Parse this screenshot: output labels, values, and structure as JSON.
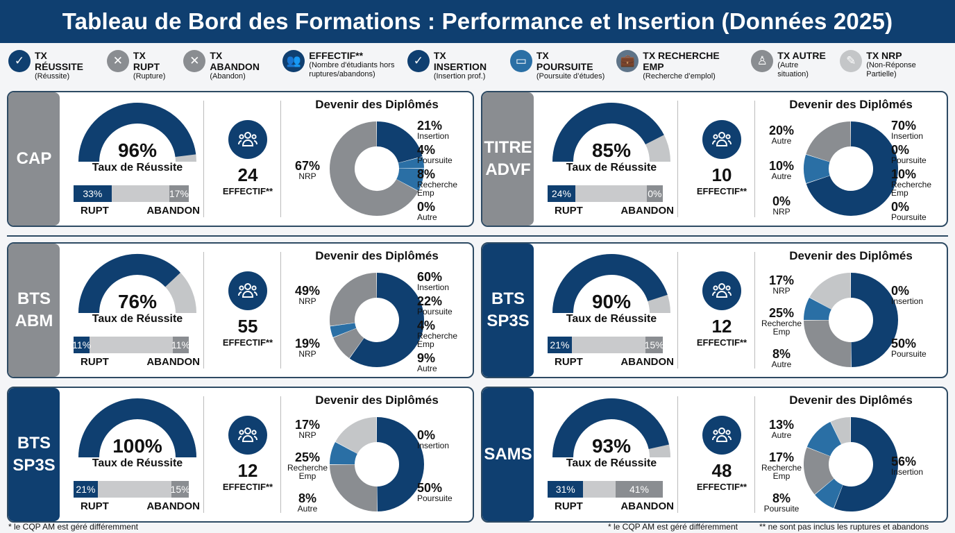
{
  "title": "Tableau de Bord des Formations : Performance et Insertion (Données 2025)",
  "colors": {
    "navy": "#0f3f70",
    "blue": "#2a6fa5",
    "gray": "#8a8d91",
    "light": "#c4c6c8",
    "label_gray": "#8a8d91",
    "label_blue": "#0f3f70"
  },
  "legend": [
    {
      "icon": "check-icon",
      "glyph": "✓",
      "color": "#0f3f70",
      "title": "TX RÉUSSITE",
      "sub": "(Réussite)"
    },
    {
      "icon": "x-icon",
      "glyph": "✕",
      "color": "#8a8d91",
      "title": "TX RUPT",
      "sub": "(Rupture)"
    },
    {
      "icon": "x-icon",
      "glyph": "✕",
      "color": "#8a8d91",
      "title": "TX ABANDON",
      "sub": "(Abandon)"
    },
    {
      "icon": "users-icon",
      "glyph": "👥",
      "color": "#0f3f70",
      "title": "EFFECTIF**",
      "sub": "(Nombre d'étudiants hors ruptures/abandons)"
    },
    {
      "icon": "check-icon",
      "glyph": "✓",
      "color": "#0f3f70",
      "title": "TX INSERTION",
      "sub": "(Insertion prof.)"
    },
    {
      "icon": "tablet-icon",
      "glyph": "▭",
      "color": "#2a6fa5",
      "title": "TX POURSUITE",
      "sub": "(Poursuite d’études)"
    },
    {
      "icon": "briefcase-icon",
      "glyph": "💼",
      "color": "#5f7488",
      "title": "TX RECHERCHE EMP",
      "sub": "(Recherche d’emplol)"
    },
    {
      "icon": "person-icon",
      "glyph": "♙",
      "color": "#8a8d91",
      "title": "TX AUTRE",
      "sub": "(Autre situation)"
    },
    {
      "icon": "pen-icon",
      "glyph": "✎",
      "color": "#c4c6c8",
      "title": "TX NRP",
      "sub": "(Non-Réponse Partielle)"
    }
  ],
  "labels": {
    "gauge": "Taux de Réussite",
    "rupt": "RUPT",
    "abandon": "ABANDON",
    "effectif": "EFFECTIF**",
    "donut": "Devenir des Diplômés"
  },
  "chart_data": [
    {
      "type": "pie",
      "name": "CAP",
      "label_color": "gray",
      "reussite": "96%",
      "reussite_value": 96,
      "rupt": "33%",
      "rupt_value": 33,
      "abandon": "17%",
      "abandon_value": 17,
      "effectif": "24",
      "segments": [
        {
          "value": 21,
          "color": "navy"
        },
        {
          "value": 4,
          "color": "blue"
        },
        {
          "value": 8,
          "color": "blue"
        },
        {
          "value": 67,
          "color": "gray"
        }
      ],
      "left": [
        {
          "pct": "67%",
          "cat": "NRP"
        }
      ],
      "right": [
        {
          "pct": "21%",
          "cat": "Insertion"
        },
        {
          "pct": "4%",
          "cat": "Poursuite"
        },
        {
          "pct": "8%",
          "cat": "Recherche Emp"
        },
        {
          "pct": "0%",
          "cat": "Autre"
        }
      ]
    },
    {
      "type": "pie",
      "name": "TITRE ADVF",
      "label_color": "gray",
      "reussite": "85%",
      "reussite_value": 85,
      "rupt": "24%",
      "rupt_value": 24,
      "abandon": "0%",
      "abandon_value": 0,
      "effectif": "10",
      "segments": [
        {
          "value": 70,
          "color": "navy"
        },
        {
          "value": 10,
          "color": "blue"
        },
        {
          "value": 20,
          "color": "gray"
        }
      ],
      "left": [
        {
          "pct": "20%",
          "cat": "Autre"
        },
        {
          "pct": "10%",
          "cat": "Autre"
        },
        {
          "pct": "0%",
          "cat": "NRP"
        }
      ],
      "right": [
        {
          "pct": "70%",
          "cat": "Insertion"
        },
        {
          "pct": "0%",
          "cat": "Poursuite"
        },
        {
          "pct": "10%",
          "cat": "Recherche Emp"
        },
        {
          "pct": "0%",
          "cat": "Poursuite"
        }
      ]
    },
    {
      "type": "pie",
      "name": "BTS ABM",
      "label_color": "gray",
      "reussite": "76%",
      "reussite_value": 76,
      "rupt": "11%",
      "rupt_value": 11,
      "abandon": "11%",
      "abandon_value": 11,
      "effectif": "55",
      "segments": [
        {
          "value": 60,
          "color": "navy"
        },
        {
          "value": 9,
          "color": "gray"
        },
        {
          "value": 4,
          "color": "blue"
        },
        {
          "value": 27,
          "color": "gray"
        }
      ],
      "left": [
        {
          "pct": "49%",
          "cat": "NRP"
        },
        {
          "pct": "19%",
          "cat": "NRP"
        }
      ],
      "right": [
        {
          "pct": "60%",
          "cat": "Insertion"
        },
        {
          "pct": "22%",
          "cat": "Poursuite"
        },
        {
          "pct": "4%",
          "cat": "Recherche Emp"
        },
        {
          "pct": "9%",
          "cat": "Autre"
        }
      ]
    },
    {
      "type": "pie",
      "name": "BTS SP3S",
      "label_color": "blue",
      "reussite": "90%",
      "reussite_value": 90,
      "rupt": "21%",
      "rupt_value": 21,
      "abandon": "15%",
      "abandon_value": 15,
      "effectif": "12",
      "segments": [
        {
          "value": 50,
          "color": "navy"
        },
        {
          "value": 25,
          "color": "gray"
        },
        {
          "value": 8,
          "color": "blue"
        },
        {
          "value": 17,
          "color": "light"
        }
      ],
      "left": [
        {
          "pct": "17%",
          "cat": "NRP"
        },
        {
          "pct": "25%",
          "cat": "Recherche Emp"
        },
        {
          "pct": "8%",
          "cat": "Autre"
        }
      ],
      "right": [
        {
          "pct": "0%",
          "cat": "Insertion"
        },
        {
          "pct": "50%",
          "cat": "Poursuite"
        }
      ]
    },
    {
      "type": "pie",
      "name": "BTS SP3S",
      "label_color": "blue",
      "reussite": "100%",
      "reussite_value": 100,
      "rupt": "21%",
      "rupt_value": 21,
      "abandon": "15%",
      "abandon_value": 15,
      "effectif": "12",
      "segments": [
        {
          "value": 50,
          "color": "navy"
        },
        {
          "value": 25,
          "color": "gray"
        },
        {
          "value": 8,
          "color": "blue"
        },
        {
          "value": 17,
          "color": "light"
        }
      ],
      "left": [
        {
          "pct": "17%",
          "cat": "NRP"
        },
        {
          "pct": "25%",
          "cat": "Recherche Emp"
        },
        {
          "pct": "8%",
          "cat": "Autre"
        }
      ],
      "right": [
        {
          "pct": "0%",
          "cat": "Insertion"
        },
        {
          "pct": "50%",
          "cat": "Poursuite"
        }
      ]
    },
    {
      "type": "pie",
      "name": "SAMS",
      "label_color": "blue",
      "reussite": "93%",
      "reussite_value": 93,
      "rupt": "31%",
      "rupt_value": 31,
      "abandon": "41%",
      "abandon_value": 41,
      "effectif": "48",
      "segments": [
        {
          "value": 56,
          "color": "navy"
        },
        {
          "value": 8,
          "color": "blue"
        },
        {
          "value": 17,
          "color": "gray"
        },
        {
          "value": 12,
          "color": "blue"
        },
        {
          "value": 7,
          "color": "light"
        }
      ],
      "left": [
        {
          "pct": "13%",
          "cat": "Autre"
        },
        {
          "pct": "17%",
          "cat": "Recherche Emp"
        },
        {
          "pct": "8%",
          "cat": "Poursuite"
        }
      ],
      "right": [
        {
          "pct": "56%",
          "cat": "Insertion"
        }
      ]
    }
  ],
  "footer": {
    "left": "* le CQP AM est géré différemment",
    "mid": "* le CQP AM est géré différemment",
    "right": "** ne sont pas inclus les ruptures et abandons"
  }
}
